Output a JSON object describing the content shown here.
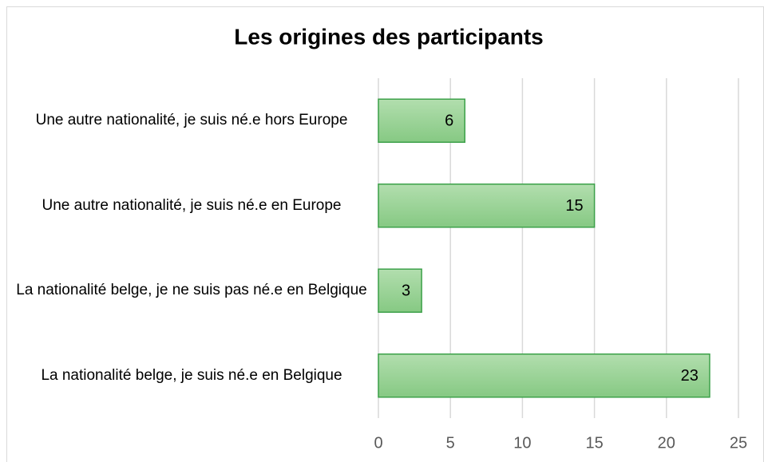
{
  "chart_data": {
    "type": "bar",
    "orientation": "horizontal",
    "title": "Les origines des participants",
    "categories": [
      "Une autre nationalité, je suis né.e hors Europe",
      "Une autre nationalité, je suis né.e en Europe",
      "La nationalité belge, je ne suis pas né.e en Belgique",
      "La nationalité belge, je suis né.e en Belgique"
    ],
    "values": [
      6,
      15,
      3,
      23
    ],
    "color": "#86c983",
    "xlim": [
      0,
      25
    ],
    "xticks": [
      0,
      5,
      10,
      15,
      20,
      25
    ],
    "grid": true
  }
}
